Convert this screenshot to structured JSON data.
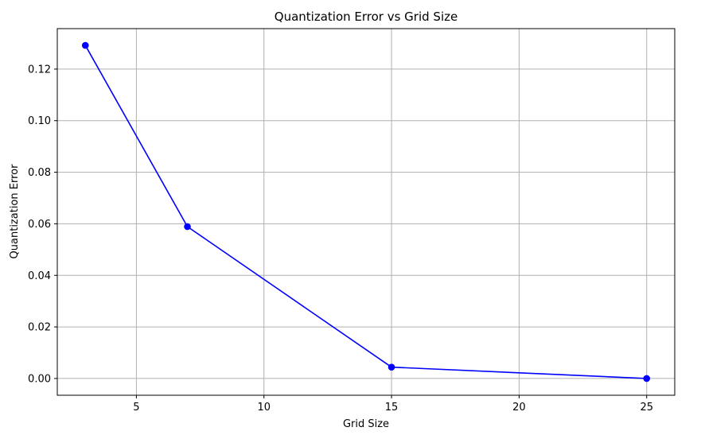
{
  "chart_data": {
    "type": "line",
    "title": "Quantization Error vs Grid Size",
    "xlabel": "Grid Size",
    "ylabel": "Quantization Error",
    "x": [
      3,
      7,
      15,
      25
    ],
    "series": [
      {
        "values": [
          0.1292,
          0.0589,
          0.0044,
          0.0
        ],
        "color": "#0000ff",
        "marker": "circle"
      }
    ],
    "xlim": [
      1.9,
      26.1
    ],
    "ylim": [
      -0.0065,
      0.1357
    ],
    "xticks": [
      5,
      10,
      15,
      20,
      25
    ],
    "xtick_labels": [
      "5",
      "10",
      "15",
      "20",
      "25"
    ],
    "yticks": [
      0.0,
      0.02,
      0.04,
      0.06,
      0.08,
      0.1,
      0.12
    ],
    "ytick_labels": [
      "0.00",
      "0.02",
      "0.04",
      "0.06",
      "0.08",
      "0.10",
      "0.12"
    ],
    "grid": true,
    "legend": false
  }
}
